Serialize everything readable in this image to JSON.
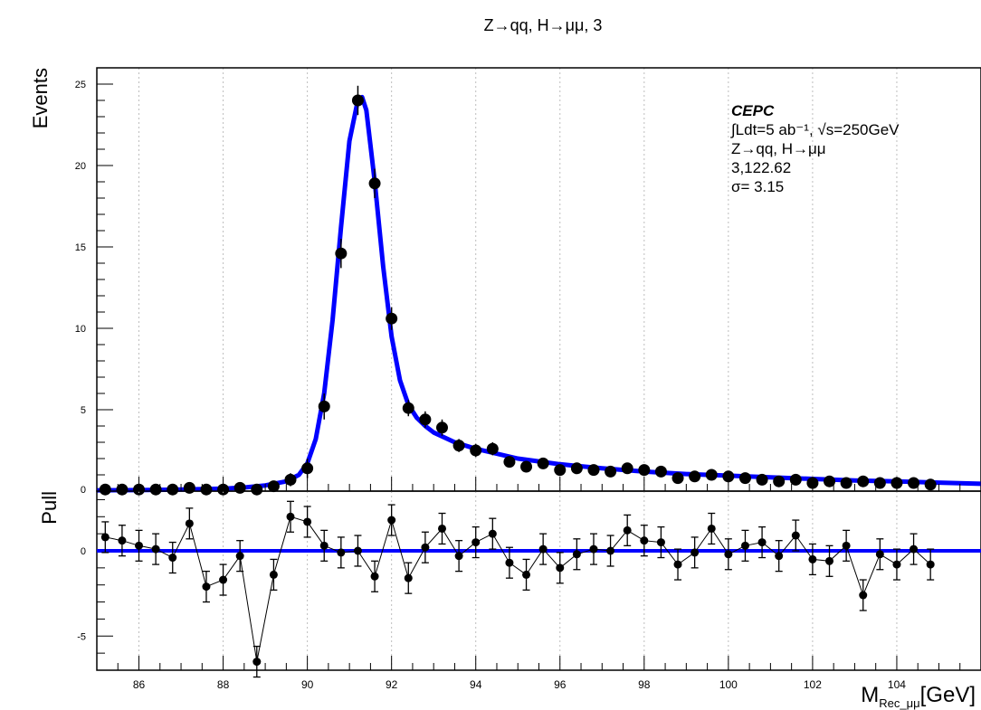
{
  "title": "Z→qq, H→μμ, 3",
  "legend": {
    "experiment": "CEPC",
    "luminosity": "∫Ldt=5 ab⁻¹, √s=250GeV",
    "process": "Z→qq, H→μμ",
    "numbers": "3,122.62",
    "sigma": "σ= 3.15"
  },
  "chart_data": [
    {
      "type": "scatter",
      "panel": "upper",
      "ylabel": "Events",
      "xlim": [
        85,
        106
      ],
      "ylim": [
        0,
        26
      ],
      "yticks": [
        5,
        10,
        15,
        20,
        25
      ],
      "grid": "vertical",
      "series": [
        {
          "style": "points-with-errors",
          "x": [
            85.2,
            85.6,
            86.0,
            86.4,
            86.8,
            87.2,
            87.6,
            88.0,
            88.4,
            88.8,
            89.2,
            89.6,
            90.0,
            90.4,
            90.8,
            91.2,
            91.6,
            92.0,
            92.4,
            92.8,
            93.2,
            93.6,
            94.0,
            94.4,
            94.8,
            95.2,
            95.6,
            96.0,
            96.4,
            96.8,
            97.2,
            97.6,
            98.0,
            98.4,
            98.8,
            99.2,
            99.6,
            100.0,
            100.4,
            100.8,
            101.2,
            101.6,
            102.0,
            102.4,
            102.8,
            103.2,
            103.6,
            104.0,
            104.4,
            104.8
          ],
          "y": [
            0.1,
            0.1,
            0.1,
            0.1,
            0.1,
            0.2,
            0.1,
            0.1,
            0.2,
            0.1,
            0.3,
            0.7,
            1.4,
            5.2,
            14.6,
            24.0,
            18.9,
            10.6,
            5.1,
            4.4,
            3.9,
            2.8,
            2.5,
            2.6,
            1.8,
            1.5,
            1.7,
            1.3,
            1.4,
            1.3,
            1.2,
            1.4,
            1.3,
            1.2,
            0.8,
            0.9,
            1.0,
            0.9,
            0.8,
            0.7,
            0.6,
            0.7,
            0.5,
            0.6,
            0.5,
            0.6,
            0.5,
            0.5,
            0.5,
            0.4
          ],
          "yerr": [
            0.1,
            0.1,
            0.1,
            0.1,
            0.1,
            0.2,
            0.1,
            0.1,
            0.2,
            0.1,
            0.3,
            0.4,
            0.6,
            0.8,
            0.9,
            0.9,
            0.9,
            0.7,
            0.5,
            0.5,
            0.5,
            0.4,
            0.4,
            0.4,
            0.3,
            0.3,
            0.3,
            0.3,
            0.3,
            0.3,
            0.3,
            0.3,
            0.3,
            0.3,
            0.2,
            0.2,
            0.3,
            0.2,
            0.2,
            0.2,
            0.2,
            0.2,
            0.2,
            0.2,
            0.2,
            0.2,
            0.2,
            0.2,
            0.2,
            0.2
          ]
        },
        {
          "style": "fit-curve",
          "color": "#0000ff",
          "x": [
            85.0,
            86.0,
            87.0,
            88.0,
            88.5,
            89.0,
            89.5,
            89.8,
            90.0,
            90.2,
            90.4,
            90.6,
            90.8,
            91.0,
            91.2,
            91.3,
            91.4,
            91.6,
            91.8,
            92.0,
            92.2,
            92.4,
            92.6,
            92.8,
            93.0,
            93.5,
            94.0,
            95.0,
            96.0,
            97.0,
            98.0,
            99.0,
            100.0,
            101.0,
            102.0,
            103.0,
            104.0,
            105.0,
            106.0
          ],
          "y": [
            0.05,
            0.06,
            0.1,
            0.15,
            0.22,
            0.35,
            0.6,
            1.0,
            1.7,
            3.2,
            6.0,
            10.5,
            16.2,
            21.5,
            24.0,
            24.2,
            23.4,
            19.0,
            13.8,
            9.5,
            6.8,
            5.3,
            4.5,
            4.0,
            3.6,
            3.0,
            2.6,
            2.0,
            1.65,
            1.4,
            1.2,
            1.05,
            0.95,
            0.85,
            0.75,
            0.65,
            0.6,
            0.52,
            0.45
          ]
        }
      ]
    },
    {
      "type": "scatter",
      "panel": "lower",
      "ylabel": "Pull",
      "xlabel": "M",
      "xlabel_sub": "Rec_μμ",
      "xlabel_unit": "[GeV]",
      "xlim": [
        85,
        106
      ],
      "ylim": [
        -7,
        3.5
      ],
      "yticks": [
        -5,
        0
      ],
      "xticks": [
        86,
        88,
        90,
        92,
        94,
        96,
        98,
        100,
        102,
        104
      ],
      "zero_line_color": "#0000ff",
      "x": [
        85.2,
        85.6,
        86.0,
        86.4,
        86.8,
        87.2,
        87.6,
        88.0,
        88.4,
        88.8,
        89.2,
        89.6,
        90.0,
        90.4,
        90.8,
        91.2,
        91.6,
        92.0,
        92.4,
        92.8,
        93.2,
        93.6,
        94.0,
        94.4,
        94.8,
        95.2,
        95.6,
        96.0,
        96.4,
        96.8,
        97.2,
        97.6,
        98.0,
        98.4,
        98.8,
        99.2,
        99.6,
        100.0,
        100.4,
        100.8,
        101.2,
        101.6,
        102.0,
        102.4,
        102.8,
        103.2,
        103.6,
        104.0,
        104.4,
        104.8
      ],
      "y": [
        0.8,
        0.6,
        0.3,
        0.1,
        -0.4,
        1.6,
        -2.1,
        -1.7,
        -0.3,
        -6.5,
        -1.4,
        2.0,
        1.7,
        0.3,
        -0.1,
        0.0,
        -1.5,
        1.8,
        -1.6,
        0.2,
        1.3,
        -0.3,
        0.5,
        1.0,
        -0.7,
        -1.4,
        0.1,
        -1.0,
        -0.2,
        0.1,
        0.0,
        1.2,
        0.6,
        0.5,
        -0.8,
        -0.1,
        1.3,
        -0.2,
        0.3,
        0.5,
        -0.3,
        0.9,
        -0.5,
        -0.6,
        0.3,
        -2.6,
        -0.2,
        -0.8,
        0.1,
        -0.8
      ],
      "yerr": [
        0.9,
        0.9,
        0.9,
        0.9,
        0.9,
        0.9,
        0.9,
        0.9,
        0.9,
        0.9,
        0.9,
        0.9,
        0.9,
        0.9,
        0.9,
        0.9,
        0.9,
        0.9,
        0.9,
        0.9,
        0.9,
        0.9,
        0.9,
        0.9,
        0.9,
        0.9,
        0.9,
        0.9,
        0.9,
        0.9,
        0.9,
        0.9,
        0.9,
        0.9,
        0.9,
        0.9,
        0.9,
        0.9,
        0.9,
        0.9,
        0.9,
        0.9,
        0.9,
        0.9,
        0.9,
        0.9,
        0.9,
        0.9,
        0.9,
        0.9
      ]
    }
  ]
}
